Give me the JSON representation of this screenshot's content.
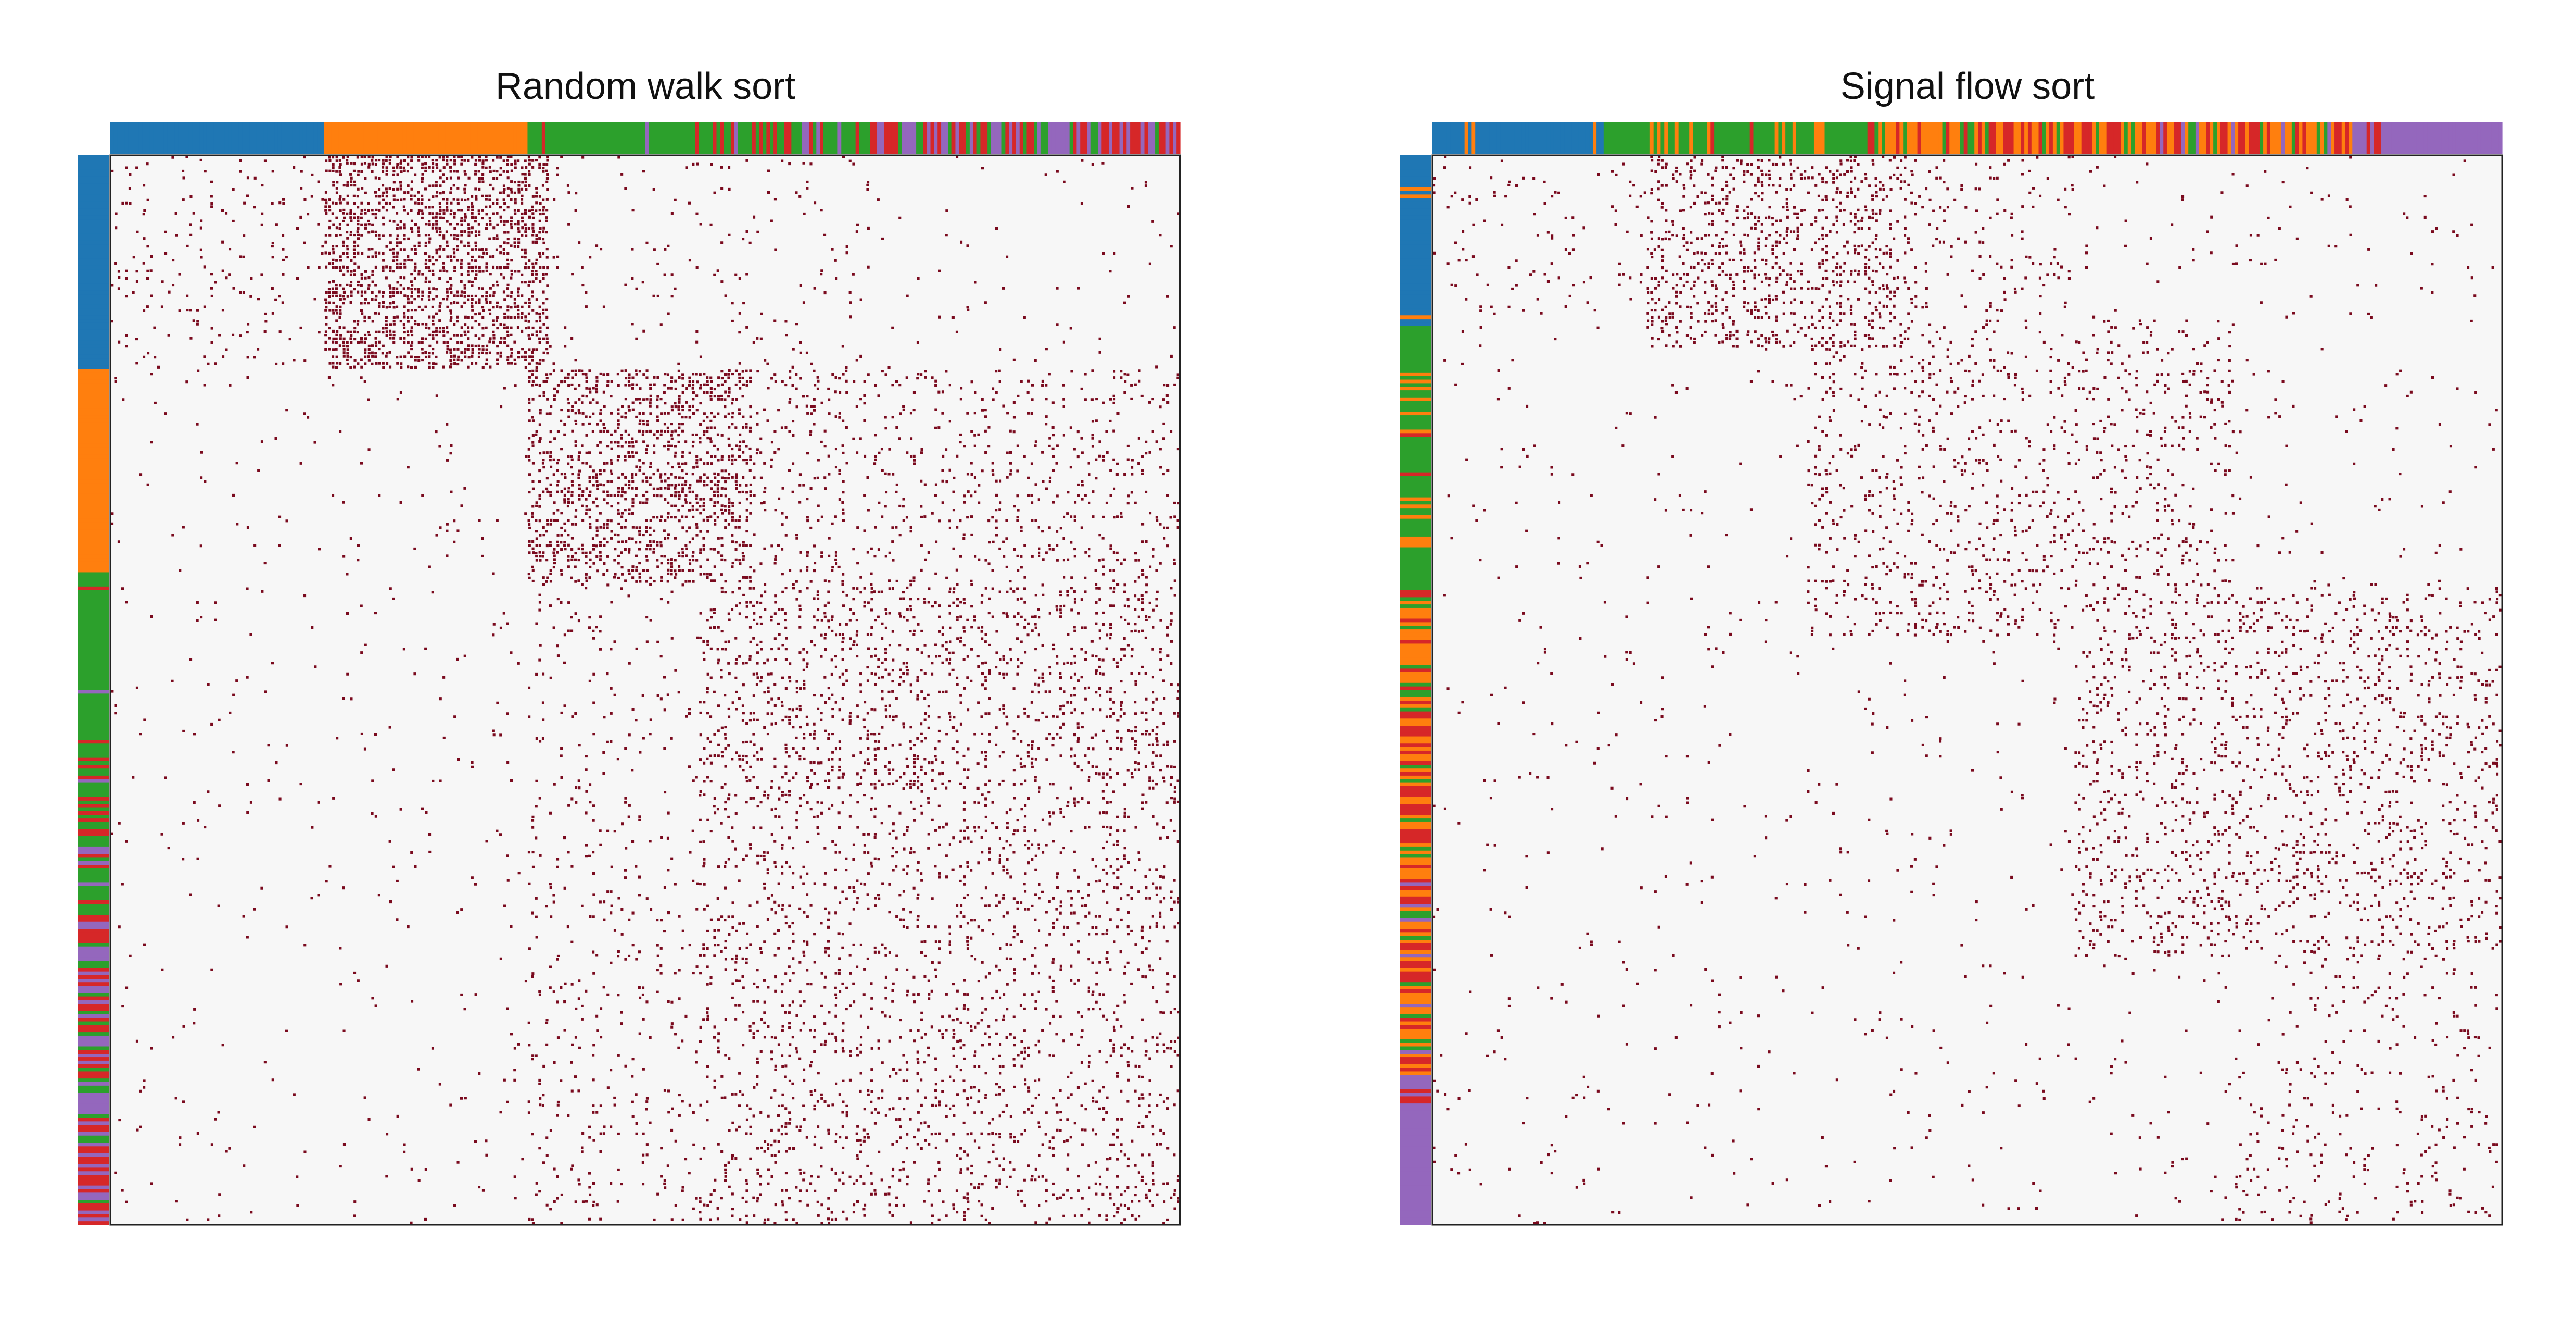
{
  "colors": {
    "blue": "#1f77b4",
    "orange": "#ff7f0e",
    "green": "#2ca02c",
    "red": "#d62728",
    "purple": "#9467bd",
    "edge": "#7a0a1e",
    "background": "#f7f7f7",
    "frame": "#222222"
  },
  "chart_data": [
    {
      "type": "heatmap",
      "title": "Random walk sort",
      "description_group_order": [
        "blue",
        "orange",
        "green",
        "red",
        "purple"
      ],
      "node_groups_order": [
        {
          "group": "blue",
          "fraction": 0.2
        },
        {
          "group": "orange",
          "fraction": 0.19
        },
        {
          "group": "mixed green/red/purple",
          "fraction": 0.61
        }
      ],
      "blocks": [
        {
          "rows": [
            0.0,
            0.2
          ],
          "cols": [
            0.2,
            0.41
          ],
          "density": "high"
        },
        {
          "rows": [
            0.2,
            0.4
          ],
          "cols": [
            0.39,
            0.6
          ],
          "density": "high"
        },
        {
          "rows": [
            0.4,
            0.6
          ],
          "cols": [
            0.55,
            1.0
          ],
          "density": "medium"
        },
        {
          "rows": [
            0.6,
            1.0
          ],
          "cols": [
            0.55,
            1.0
          ],
          "density": "medium"
        }
      ]
    },
    {
      "type": "heatmap",
      "title": "Signal flow sort",
      "node_groups_order": [
        {
          "group": "blue",
          "fraction": 0.16
        },
        {
          "group": "mixed green/orange/red",
          "fraction": 0.7
        },
        {
          "group": "purple",
          "fraction": 0.14
        }
      ],
      "blocks": [
        {
          "rows": [
            0.0,
            0.18
          ],
          "cols": [
            0.2,
            0.45
          ],
          "density": "high"
        },
        {
          "rows": [
            0.15,
            0.45
          ],
          "cols": [
            0.35,
            0.75
          ],
          "density": "medium"
        },
        {
          "rows": [
            0.4,
            0.75
          ],
          "cols": [
            0.6,
            1.0
          ],
          "density": "medium"
        },
        {
          "rows": [
            0.7,
            1.0
          ],
          "cols": [
            0.75,
            1.0
          ],
          "density": "low"
        }
      ]
    }
  ]
}
